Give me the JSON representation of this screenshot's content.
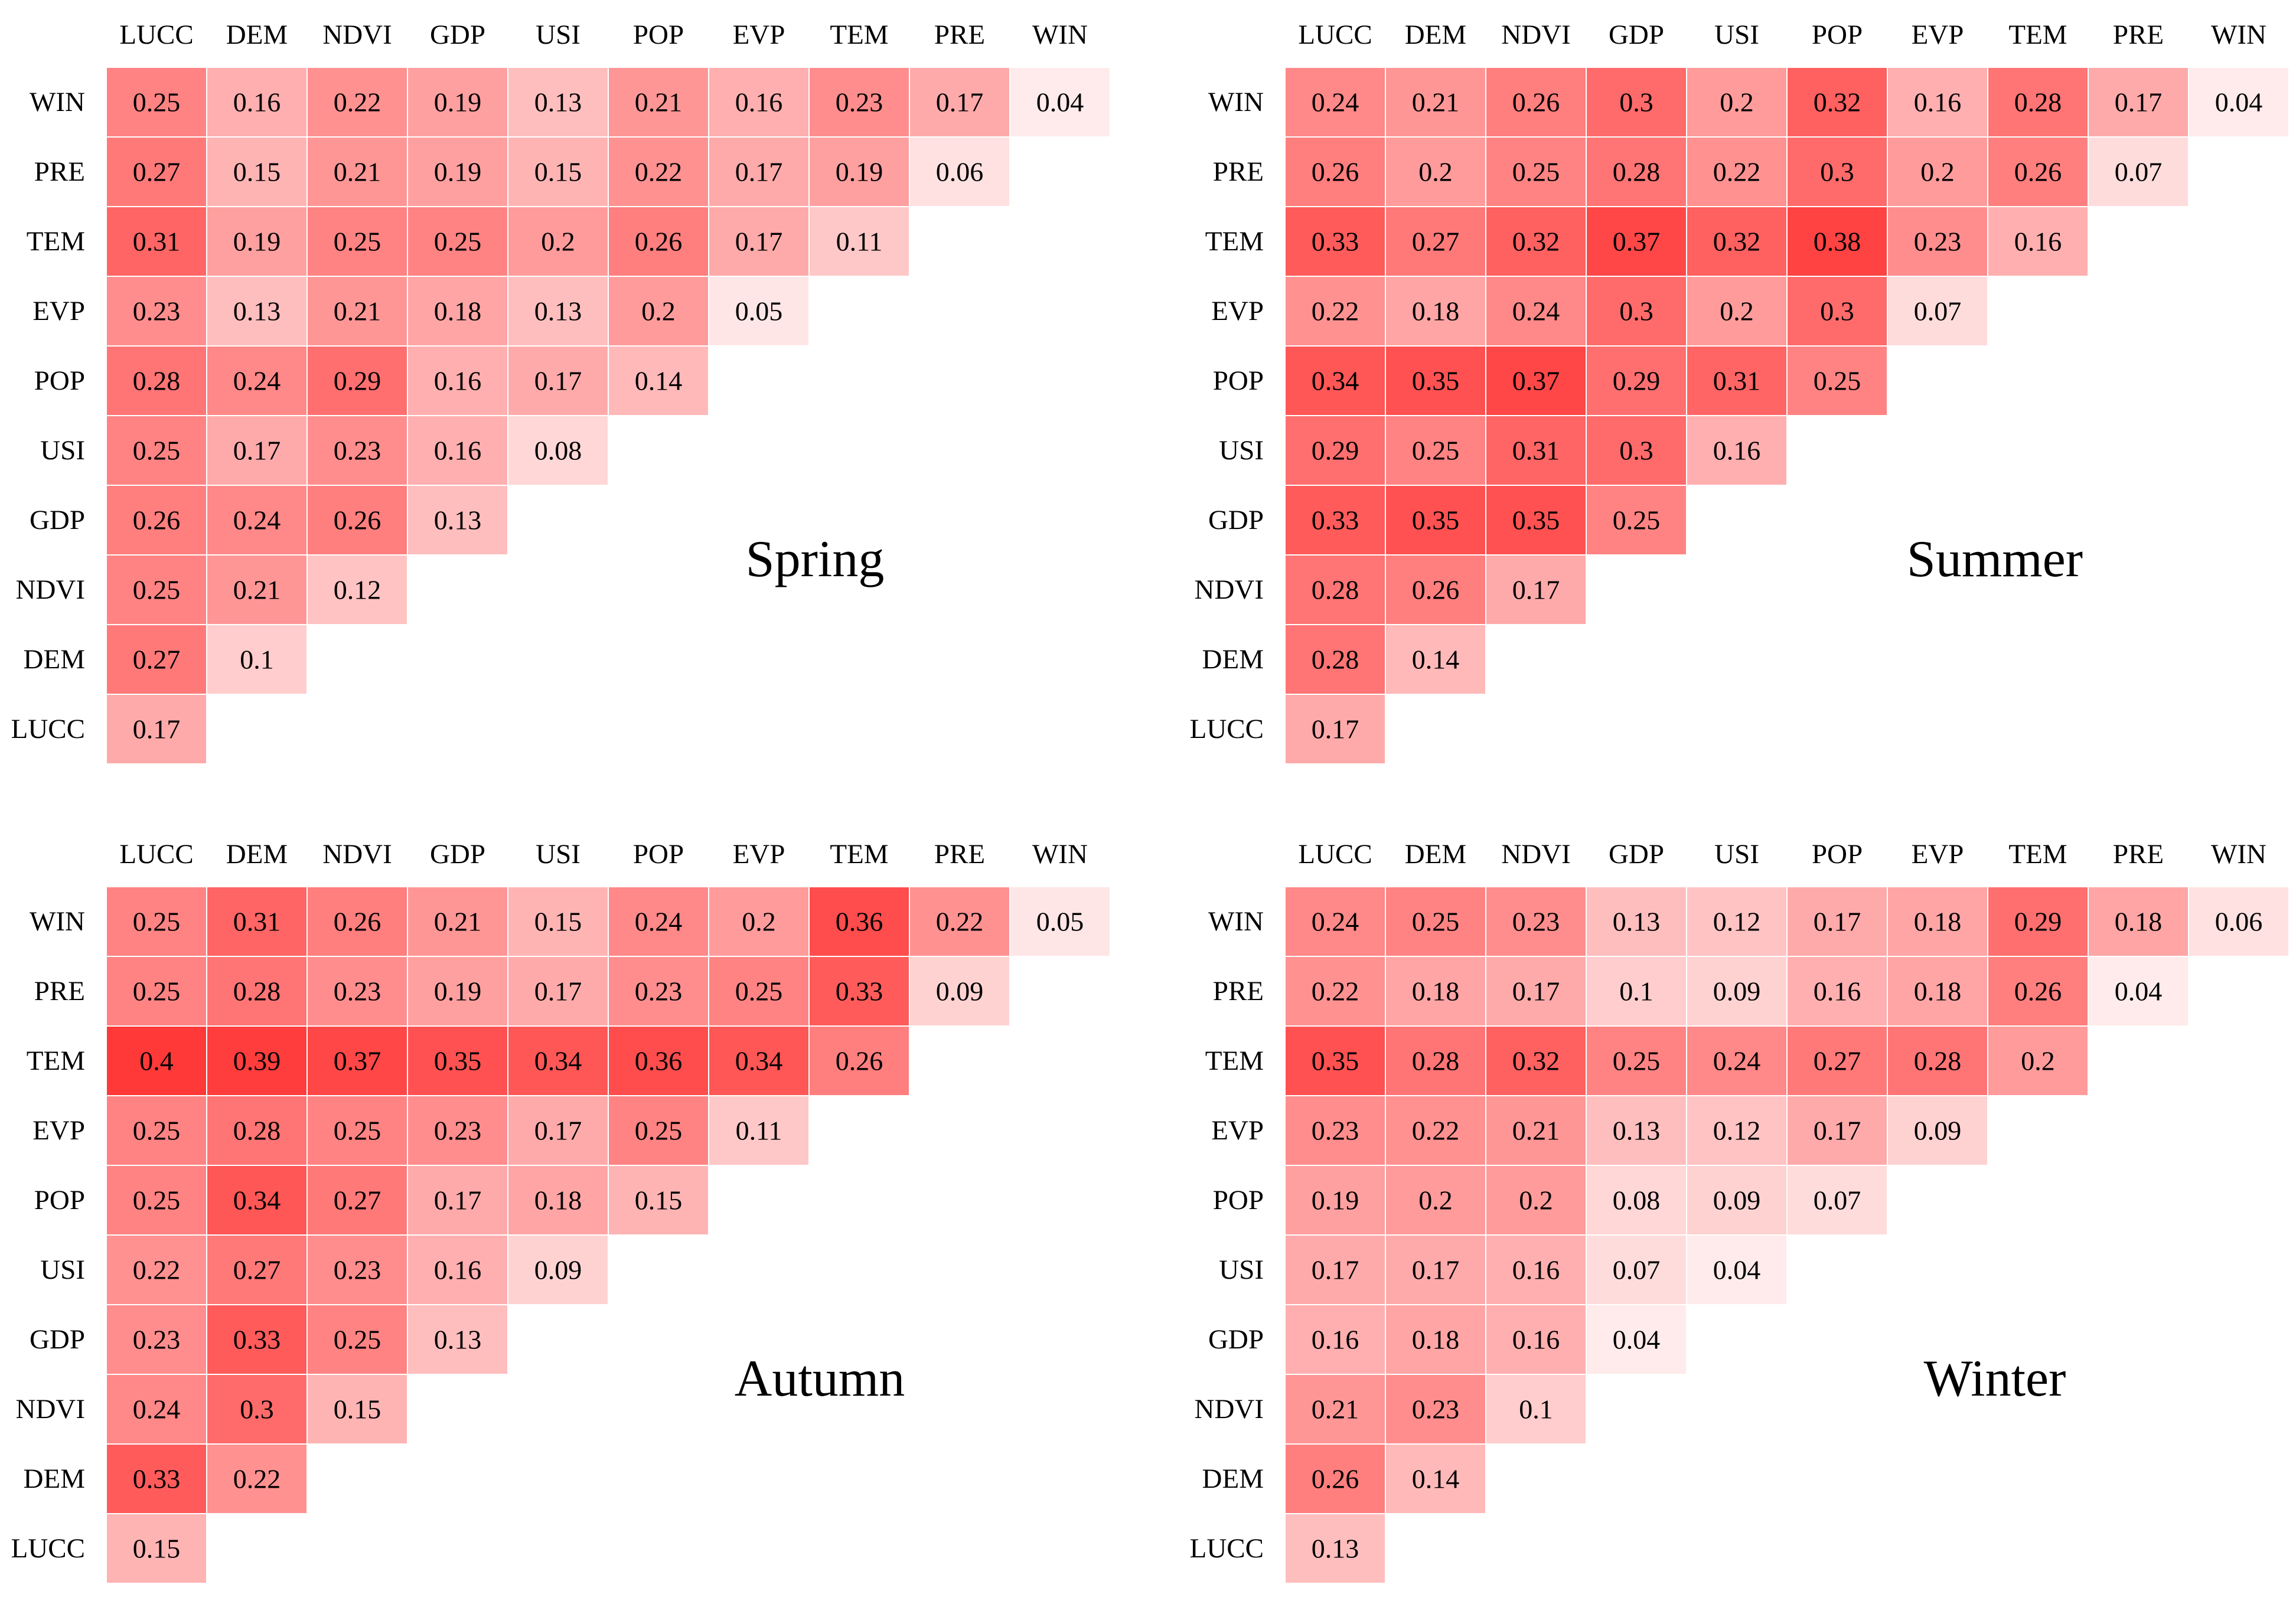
{
  "chart_data": [
    {
      "type": "heatmap",
      "title": "Spring",
      "x_categories": [
        "LUCC",
        "DEM",
        "NDVI",
        "GDP",
        "USI",
        "POP",
        "EVP",
        "TEM",
        "PRE",
        "WIN"
      ],
      "y_categories": [
        "WIN",
        "PRE",
        "TEM",
        "EVP",
        "POP",
        "USI",
        "GDP",
        "NDVI",
        "DEM",
        "LUCC"
      ],
      "values": [
        [
          0.25,
          0.16,
          0.22,
          0.19,
          0.13,
          0.21,
          0.16,
          0.23,
          0.17,
          0.04
        ],
        [
          0.27,
          0.15,
          0.21,
          0.19,
          0.15,
          0.22,
          0.17,
          0.19,
          0.06
        ],
        [
          0.31,
          0.19,
          0.25,
          0.25,
          0.2,
          0.26,
          0.17,
          0.11
        ],
        [
          0.23,
          0.13,
          0.21,
          0.18,
          0.13,
          0.2,
          0.05
        ],
        [
          0.28,
          0.24,
          0.29,
          0.16,
          0.17,
          0.14
        ],
        [
          0.25,
          0.17,
          0.23,
          0.16,
          0.08
        ],
        [
          0.26,
          0.24,
          0.26,
          0.13
        ],
        [
          0.25,
          0.21,
          0.12
        ],
        [
          0.27,
          0.1
        ],
        [
          0.17
        ]
      ]
    },
    {
      "type": "heatmap",
      "title": "Summer",
      "x_categories": [
        "LUCC",
        "DEM",
        "NDVI",
        "GDP",
        "USI",
        "POP",
        "EVP",
        "TEM",
        "PRE",
        "WIN"
      ],
      "y_categories": [
        "WIN",
        "PRE",
        "TEM",
        "EVP",
        "POP",
        "USI",
        "GDP",
        "NDVI",
        "DEM",
        "LUCC"
      ],
      "values": [
        [
          0.24,
          0.21,
          0.26,
          0.3,
          0.2,
          0.32,
          0.16,
          0.28,
          0.17,
          0.04
        ],
        [
          0.26,
          0.2,
          0.25,
          0.28,
          0.22,
          0.3,
          0.2,
          0.26,
          0.07
        ],
        [
          0.33,
          0.27,
          0.32,
          0.37,
          0.32,
          0.38,
          0.23,
          0.16
        ],
        [
          0.22,
          0.18,
          0.24,
          0.3,
          0.2,
          0.3,
          0.07
        ],
        [
          0.34,
          0.35,
          0.37,
          0.29,
          0.31,
          0.25
        ],
        [
          0.29,
          0.25,
          0.31,
          0.3,
          0.16
        ],
        [
          0.33,
          0.35,
          0.35,
          0.25
        ],
        [
          0.28,
          0.26,
          0.17
        ],
        [
          0.28,
          0.14
        ],
        [
          0.17
        ]
      ]
    },
    {
      "type": "heatmap",
      "title": "Autumn",
      "x_categories": [
        "LUCC",
        "DEM",
        "NDVI",
        "GDP",
        "USI",
        "POP",
        "EVP",
        "TEM",
        "PRE",
        "WIN"
      ],
      "y_categories": [
        "WIN",
        "PRE",
        "TEM",
        "EVP",
        "POP",
        "USI",
        "GDP",
        "NDVI",
        "DEM",
        "LUCC"
      ],
      "values": [
        [
          0.25,
          0.31,
          0.26,
          0.21,
          0.15,
          0.24,
          0.2,
          0.36,
          0.22,
          0.05
        ],
        [
          0.25,
          0.28,
          0.23,
          0.19,
          0.17,
          0.23,
          0.25,
          0.33,
          0.09
        ],
        [
          0.4,
          0.39,
          0.37,
          0.35,
          0.34,
          0.36,
          0.34,
          0.26
        ],
        [
          0.25,
          0.28,
          0.25,
          0.23,
          0.17,
          0.25,
          0.11
        ],
        [
          0.25,
          0.34,
          0.27,
          0.17,
          0.18,
          0.15
        ],
        [
          0.22,
          0.27,
          0.23,
          0.16,
          0.09
        ],
        [
          0.23,
          0.33,
          0.25,
          0.13
        ],
        [
          0.24,
          0.3,
          0.15
        ],
        [
          0.33,
          0.22
        ],
        [
          0.15
        ]
      ]
    },
    {
      "type": "heatmap",
      "title": "Winter",
      "x_categories": [
        "LUCC",
        "DEM",
        "NDVI",
        "GDP",
        "USI",
        "POP",
        "EVP",
        "TEM",
        "PRE",
        "WIN"
      ],
      "y_categories": [
        "WIN",
        "PRE",
        "TEM",
        "EVP",
        "POP",
        "USI",
        "GDP",
        "NDVI",
        "DEM",
        "LUCC"
      ],
      "values": [
        [
          0.24,
          0.25,
          0.23,
          0.13,
          0.12,
          0.17,
          0.18,
          0.29,
          0.18,
          0.06
        ],
        [
          0.22,
          0.18,
          0.17,
          0.1,
          0.09,
          0.16,
          0.18,
          0.26,
          0.04
        ],
        [
          0.35,
          0.28,
          0.32,
          0.25,
          0.24,
          0.27,
          0.28,
          0.2
        ],
        [
          0.23,
          0.22,
          0.21,
          0.13,
          0.12,
          0.17,
          0.09
        ],
        [
          0.19,
          0.2,
          0.2,
          0.08,
          0.09,
          0.07
        ],
        [
          0.17,
          0.17,
          0.16,
          0.07,
          0.04
        ],
        [
          0.16,
          0.18,
          0.16,
          0.04
        ],
        [
          0.21,
          0.23,
          0.1
        ],
        [
          0.26,
          0.14
        ],
        [
          0.13
        ]
      ]
    }
  ],
  "colors": {
    "low": "#ffffff",
    "high": "#ff1f1f",
    "cell_border": "#ffffff"
  },
  "color_range": [
    0,
    0.45
  ]
}
